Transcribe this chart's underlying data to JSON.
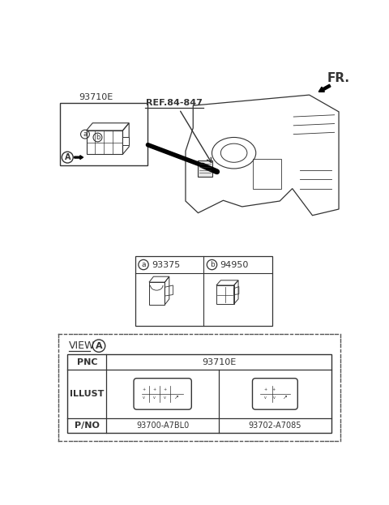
{
  "bg_color": "#ffffff",
  "fr_label": "FR.",
  "ref_label": "REF.84-847",
  "part_a_label": "93375",
  "part_b_label": "94950",
  "pnc_label": "PNC",
  "pnc_value": "93710E",
  "illust_label": "ILLUST",
  "pno_label": "P/NO",
  "pno_1": "93700-A7BL0",
  "pno_2": "93702-A7085",
  "view_label": "VIEW",
  "view_letter": "A",
  "line_color": "#333333",
  "dashed_color": "#555555"
}
